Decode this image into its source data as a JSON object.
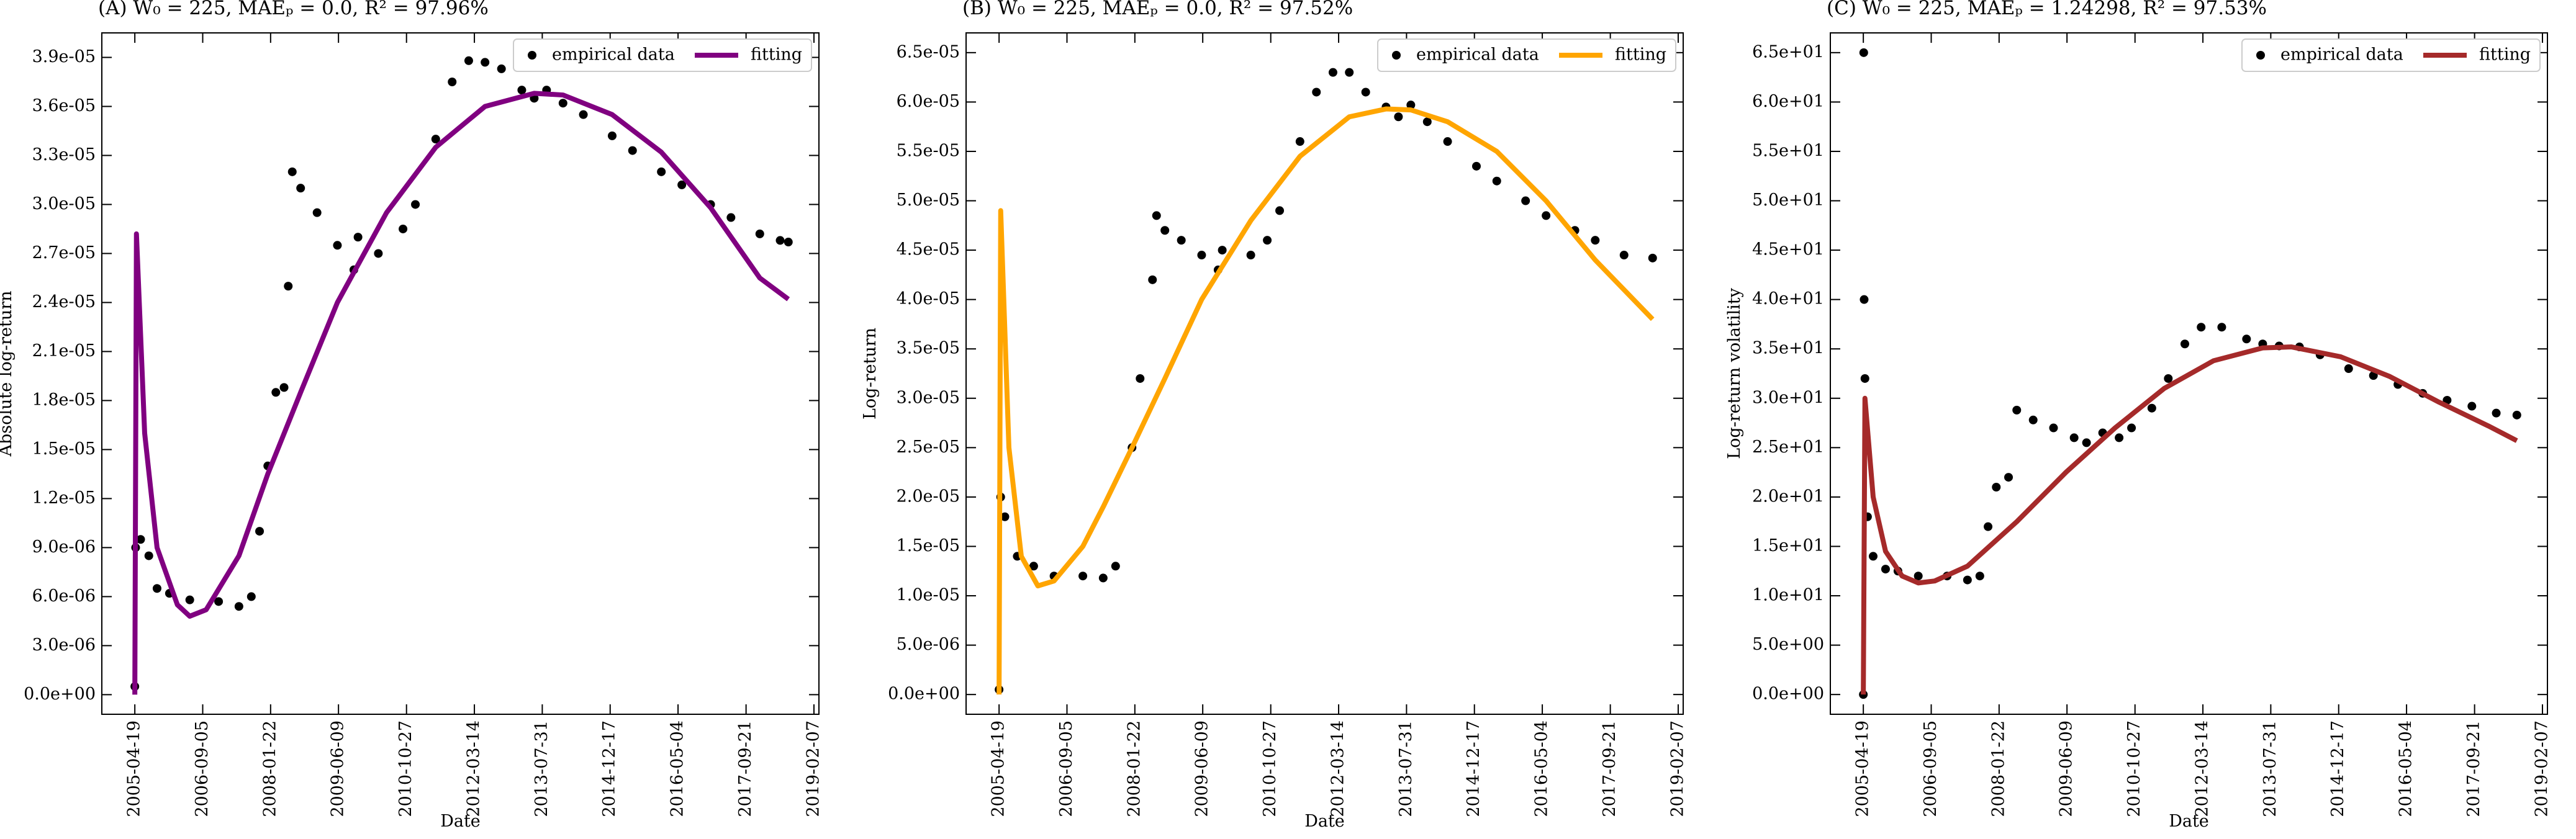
{
  "chart_data": [
    {
      "type": "line",
      "title": "(A) W₀ = 225, MAEₚ = 0.0, R² = 97.96%",
      "xlabel": "Date",
      "ylabel": "Absolute log-return",
      "xlim": [
        "2004-08-17",
        "2019-03-16"
      ],
      "xticks": [
        "2005-04-19",
        "2006-09-05",
        "2008-01-22",
        "2009-06-09",
        "2010-10-27",
        "2012-03-14",
        "2013-07-31",
        "2014-12-17",
        "2016-05-04",
        "2017-09-21",
        "2019-02-07"
      ],
      "ylim": [
        -1.2e-06,
        4.05e-05
      ],
      "yticks": [
        {
          "value": 0,
          "label": "0.0e+00"
        },
        {
          "value": 3e-06,
          "label": "3.0e-06"
        },
        {
          "value": 6e-06,
          "label": "6.0e-06"
        },
        {
          "value": 9e-06,
          "label": "9.0e-06"
        },
        {
          "value": 1.2e-05,
          "label": "1.2e-05"
        },
        {
          "value": 1.5e-05,
          "label": "1.5e-05"
        },
        {
          "value": 1.8e-05,
          "label": "1.8e-05"
        },
        {
          "value": 2.1e-05,
          "label": "2.1e-05"
        },
        {
          "value": 2.4e-05,
          "label": "2.4e-05"
        },
        {
          "value": 2.7e-05,
          "label": "2.7e-05"
        },
        {
          "value": 3e-05,
          "label": "3.0e-05"
        },
        {
          "value": 3.3e-05,
          "label": "3.3e-05"
        },
        {
          "value": 3.6e-05,
          "label": "3.6e-05"
        },
        {
          "value": 3.9e-05,
          "label": "3.9e-05"
        }
      ],
      "legend": "upper right",
      "series": [
        {
          "name": "empirical data",
          "marker": "dot",
          "color": "#000000",
          "x": [
            "2005-04-19",
            "2005-04-25",
            "2005-06-01",
            "2005-08-01",
            "2005-10-01",
            "2006-01-01",
            "2006-06-01",
            "2007-01-01",
            "2007-06-01",
            "2007-09-01",
            "2007-11-01",
            "2008-01-01",
            "2008-03-01",
            "2008-05-01",
            "2008-06-01",
            "2008-07-01",
            "2008-09-01",
            "2009-01-01",
            "2009-06-01",
            "2009-10-01",
            "2009-11-01",
            "2010-04-01",
            "2010-10-01",
            "2011-01-01",
            "2011-06-01",
            "2011-10-01",
            "2012-02-01",
            "2012-06-01",
            "2012-10-01",
            "2013-03-01",
            "2013-06-01",
            "2013-09-01",
            "2014-01-01",
            "2014-06-01",
            "2015-01-01",
            "2015-06-01",
            "2016-01-01",
            "2016-06-01",
            "2017-01-01",
            "2017-06-01",
            "2018-01-01",
            "2018-06-01",
            "2018-08-01"
          ],
          "values": [
            5e-07,
            9e-06,
            9.5e-06,
            8.5e-06,
            6.5e-06,
            6.2e-06,
            5.8e-06,
            5.7e-06,
            5.4e-06,
            6e-06,
            1e-05,
            1.4e-05,
            1.85e-05,
            1.88e-05,
            2.5e-05,
            3.2e-05,
            3.1e-05,
            2.95e-05,
            2.75e-05,
            2.6e-05,
            2.8e-05,
            2.7e-05,
            2.85e-05,
            3e-05,
            3.4e-05,
            3.75e-05,
            3.88e-05,
            3.87e-05,
            3.83e-05,
            3.7e-05,
            3.65e-05,
            3.7e-05,
            3.62e-05,
            3.55e-05,
            3.42e-05,
            3.33e-05,
            3.2e-05,
            3.12e-05,
            3e-05,
            2.92e-05,
            2.82e-05,
            2.78e-05,
            2.77e-05
          ]
        },
        {
          "name": "fitting",
          "marker": "line",
          "color": "#800080",
          "x": [
            "2005-04-19",
            "2005-05-01",
            "2005-07-01",
            "2005-10-01",
            "2006-03-01",
            "2006-06-01",
            "2006-10-01",
            "2007-06-01",
            "2008-01-01",
            "2008-09-01",
            "2009-06-01",
            "2010-06-01",
            "2011-06-01",
            "2012-06-01",
            "2013-06-01",
            "2014-01-01",
            "2015-01-01",
            "2016-01-01",
            "2017-01-01",
            "2018-01-01",
            "2018-08-01"
          ],
          "values": [
            0,
            2.82e-05,
            1.6e-05,
            9e-06,
            5.5e-06,
            4.8e-06,
            5.2e-06,
            8.5e-06,
            1.35e-05,
            1.85e-05,
            2.4e-05,
            2.95e-05,
            3.35e-05,
            3.6e-05,
            3.68e-05,
            3.67e-05,
            3.55e-05,
            3.32e-05,
            2.98e-05,
            2.55e-05,
            2.42e-05
          ]
        }
      ]
    },
    {
      "type": "line",
      "title": "(B) W₀ = 225, MAEₚ = 0.0, R² = 97.52%",
      "xlabel": "Date",
      "ylabel": "Log-return",
      "xlim": [
        "2004-08-17",
        "2019-03-16"
      ],
      "xticks": [
        "2005-04-19",
        "2006-09-05",
        "2008-01-22",
        "2009-06-09",
        "2010-10-27",
        "2012-03-14",
        "2013-07-31",
        "2014-12-17",
        "2016-05-04",
        "2017-09-21",
        "2019-02-07"
      ],
      "ylim": [
        -2e-06,
        6.7e-05
      ],
      "yticks": [
        {
          "value": 0,
          "label": "0.0e+00"
        },
        {
          "value": 5e-06,
          "label": "5.0e-06"
        },
        {
          "value": 1e-05,
          "label": "1.0e-05"
        },
        {
          "value": 1.5e-05,
          "label": "1.5e-05"
        },
        {
          "value": 2e-05,
          "label": "2.0e-05"
        },
        {
          "value": 2.5e-05,
          "label": "2.5e-05"
        },
        {
          "value": 3e-05,
          "label": "3.0e-05"
        },
        {
          "value": 3.5e-05,
          "label": "3.5e-05"
        },
        {
          "value": 4e-05,
          "label": "4.0e-05"
        },
        {
          "value": 4.5e-05,
          "label": "4.5e-05"
        },
        {
          "value": 5e-05,
          "label": "5.0e-05"
        },
        {
          "value": 5.5e-05,
          "label": "5.5e-05"
        },
        {
          "value": 6e-05,
          "label": "6.0e-05"
        },
        {
          "value": 6.5e-05,
          "label": "6.5e-05"
        }
      ],
      "legend": "upper right",
      "series": [
        {
          "name": "empirical data",
          "marker": "dot",
          "color": "#000000",
          "x": [
            "2005-04-19",
            "2005-05-01",
            "2005-06-01",
            "2005-09-01",
            "2006-01-01",
            "2006-06-01",
            "2007-01-01",
            "2007-06-01",
            "2007-09-01",
            "2008-01-01",
            "2008-03-01",
            "2008-06-01",
            "2008-07-01",
            "2008-09-01",
            "2009-01-01",
            "2009-06-01",
            "2009-10-01",
            "2009-11-01",
            "2010-06-01",
            "2010-10-01",
            "2011-01-01",
            "2011-06-01",
            "2011-10-01",
            "2012-02-01",
            "2012-06-01",
            "2012-10-01",
            "2013-03-01",
            "2013-06-01",
            "2013-09-01",
            "2014-01-01",
            "2014-06-01",
            "2015-01-01",
            "2015-06-01",
            "2016-01-01",
            "2016-06-01",
            "2017-01-01",
            "2017-06-01",
            "2018-01-01",
            "2018-08-01"
          ],
          "values": [
            5e-07,
            2e-05,
            1.8e-05,
            1.4e-05,
            1.3e-05,
            1.2e-05,
            1.2e-05,
            1.18e-05,
            1.3e-05,
            2.5e-05,
            3.2e-05,
            4.2e-05,
            4.85e-05,
            4.7e-05,
            4.6e-05,
            4.45e-05,
            4.3e-05,
            4.5e-05,
            4.45e-05,
            4.6e-05,
            4.9e-05,
            5.6e-05,
            6.1e-05,
            6.3e-05,
            6.3e-05,
            6.1e-05,
            5.95e-05,
            5.85e-05,
            5.97e-05,
            5.8e-05,
            5.6e-05,
            5.35e-05,
            5.2e-05,
            5e-05,
            4.85e-05,
            4.7e-05,
            4.6e-05,
            4.45e-05,
            4.42e-05
          ]
        },
        {
          "name": "fitting",
          "marker": "line",
          "color": "#FFA500",
          "x": [
            "2005-04-19",
            "2005-05-01",
            "2005-07-01",
            "2005-10-01",
            "2006-02-01",
            "2006-06-01",
            "2007-01-01",
            "2007-06-01",
            "2008-01-01",
            "2008-09-01",
            "2009-06-01",
            "2010-06-01",
            "2011-06-01",
            "2012-06-01",
            "2013-03-01",
            "2013-09-01",
            "2014-06-01",
            "2015-06-01",
            "2016-06-01",
            "2017-06-01",
            "2018-08-01"
          ],
          "values": [
            0,
            4.9e-05,
            2.5e-05,
            1.4e-05,
            1.1e-05,
            1.15e-05,
            1.5e-05,
            1.9e-05,
            2.5e-05,
            3.2e-05,
            4e-05,
            4.8e-05,
            5.45e-05,
            5.85e-05,
            5.93e-05,
            5.92e-05,
            5.8e-05,
            5.5e-05,
            5e-05,
            4.4e-05,
            3.8e-05
          ]
        }
      ]
    },
    {
      "type": "line",
      "title": "(C) W₀ = 225, MAEₚ = 1.24298, R² = 97.53%",
      "xlabel": "Date",
      "ylabel": "Log-return volatility",
      "xlim": [
        "2004-08-17",
        "2019-03-16"
      ],
      "xticks": [
        "2005-04-19",
        "2006-09-05",
        "2008-01-22",
        "2009-06-09",
        "2010-10-27",
        "2012-03-14",
        "2013-07-31",
        "2014-12-17",
        "2016-05-04",
        "2017-09-21",
        "2019-02-07"
      ],
      "ylim": [
        -2,
        67
      ],
      "yticks": [
        {
          "value": 0,
          "label": "0.0e+00"
        },
        {
          "value": 5,
          "label": "5.0e+00"
        },
        {
          "value": 10,
          "label": "1.0e+01"
        },
        {
          "value": 15,
          "label": "1.5e+01"
        },
        {
          "value": 20,
          "label": "2.0e+01"
        },
        {
          "value": 25,
          "label": "2.5e+01"
        },
        {
          "value": 30,
          "label": "3.0e+01"
        },
        {
          "value": 35,
          "label": "3.5e+01"
        },
        {
          "value": 40,
          "label": "4.0e+01"
        },
        {
          "value": 45,
          "label": "4.5e+01"
        },
        {
          "value": 50,
          "label": "5.0e+01"
        },
        {
          "value": 55,
          "label": "5.5e+01"
        },
        {
          "value": 60,
          "label": "6.0e+01"
        },
        {
          "value": 65,
          "label": "6.5e+01"
        }
      ],
      "legend": "upper right",
      "series": [
        {
          "name": "empirical data",
          "marker": "dot",
          "color": "#000000",
          "x": [
            "2005-04-19",
            "2005-04-22",
            "2005-04-25",
            "2005-05-01",
            "2005-05-20",
            "2005-07-01",
            "2005-10-01",
            "2006-01-01",
            "2006-06-01",
            "2007-01-01",
            "2007-06-01",
            "2007-09-01",
            "2007-11-01",
            "2008-01-01",
            "2008-04-01",
            "2008-06-01",
            "2008-10-01",
            "2009-03-01",
            "2009-08-01",
            "2009-11-01",
            "2010-03-01",
            "2010-07-01",
            "2010-10-01",
            "2011-03-01",
            "2011-07-01",
            "2011-11-01",
            "2012-03-01",
            "2012-08-01",
            "2013-02-01",
            "2013-06-01",
            "2013-10-01",
            "2014-03-01",
            "2014-08-01",
            "2015-03-01",
            "2015-09-01",
            "2016-03-01",
            "2016-09-01",
            "2017-03-01",
            "2017-09-01",
            "2018-03-01",
            "2018-08-01"
          ],
          "values": [
            0,
            65,
            40,
            32,
            18,
            14,
            12.7,
            12.5,
            12.0,
            12.0,
            11.6,
            12.0,
            17,
            21,
            22,
            28.8,
            27.8,
            27,
            26,
            25.5,
            26.5,
            26,
            27,
            29,
            32,
            35.5,
            37.2,
            37.2,
            36,
            35.5,
            35.3,
            35.2,
            34.4,
            33.0,
            32.3,
            31.4,
            30.5,
            29.8,
            29.2,
            28.5,
            28.3
          ]
        },
        {
          "name": "fitting",
          "marker": "line",
          "color": "#A52A2A",
          "x": [
            "2005-04-19",
            "2005-05-01",
            "2005-07-01",
            "2005-10-01",
            "2006-02-01",
            "2006-06-01",
            "2006-10-01",
            "2007-06-01",
            "2008-06-01",
            "2009-06-01",
            "2010-06-01",
            "2011-06-01",
            "2012-06-01",
            "2013-06-01",
            "2014-01-01",
            "2015-01-01",
            "2016-01-01",
            "2017-01-01",
            "2018-01-01",
            "2018-08-01"
          ],
          "values": [
            0,
            30,
            20,
            14.5,
            12,
            11.3,
            11.5,
            13,
            17.5,
            22.5,
            27,
            31,
            33.8,
            35.1,
            35.2,
            34.2,
            32.2,
            29.6,
            27.2,
            25.7
          ]
        }
      ]
    }
  ]
}
